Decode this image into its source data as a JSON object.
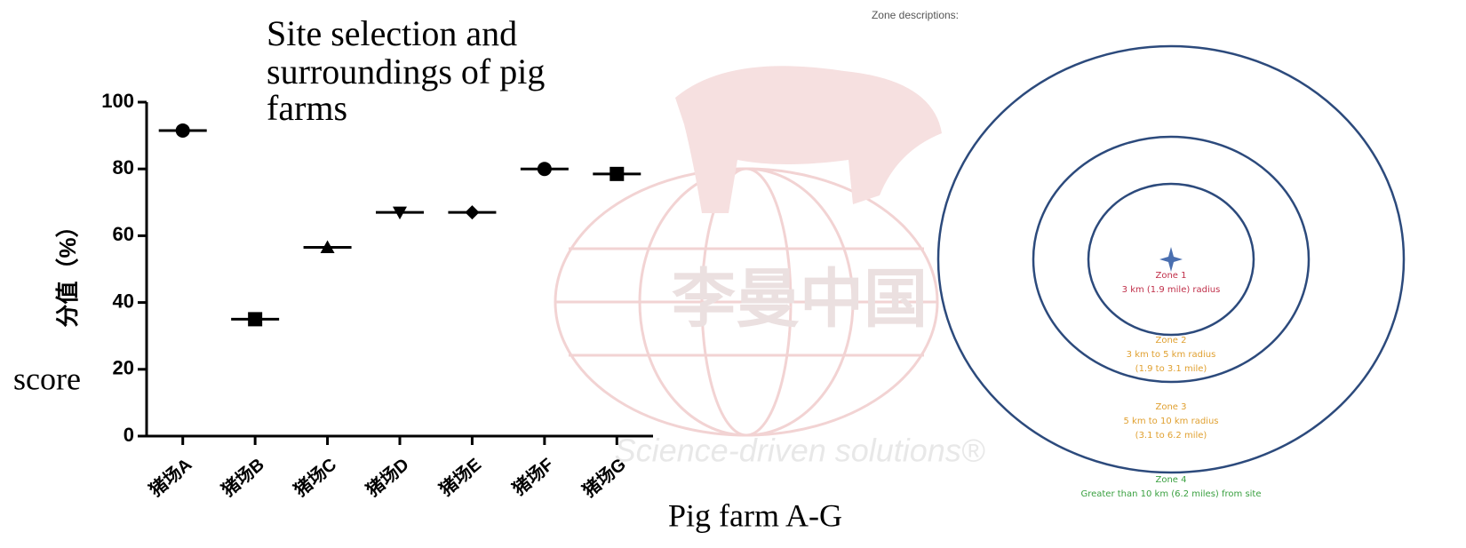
{
  "chart_data": {
    "type": "dot",
    "title": [
      "Site selection and",
      "surroundings of pig",
      "farms"
    ],
    "y_label": "分值（%）",
    "annotations": [
      "score",
      "Pig farm A-G"
    ],
    "categories": [
      "猪场A",
      "猪场B",
      "猪场C",
      "猪场D",
      "猪场E",
      "猪场F",
      "猪场G"
    ],
    "values": [
      91.5,
      35,
      56.5,
      67,
      67,
      80,
      78.5
    ],
    "markers": [
      "circle",
      "square",
      "triangle",
      "triangle-down",
      "diamond",
      "circle",
      "square"
    ],
    "color": "#000000",
    "ylim": [
      0,
      100
    ],
    "yticks": [
      0,
      20,
      40,
      60,
      80,
      100
    ]
  },
  "watermark": {
    "text": "李曼中国",
    "slogan": "Science-driven solutions®"
  },
  "diagram": {
    "title": "Zone descriptions:",
    "zones": [
      {
        "name": "Zone 1",
        "lines": [
          "3 km (1.9 mile) radius"
        ],
        "color": "#c0304a"
      },
      {
        "name": "Zone 2",
        "lines": [
          "3 km to 5 km radius",
          "(1.9 to 3.1 mile)"
        ],
        "color": "#e0a030"
      },
      {
        "name": "Zone 3",
        "lines": [
          "5 km to 10 km radius",
          "(3.1 to 6.2 mile)"
        ],
        "color": "#e0a030"
      },
      {
        "name": "Zone 4",
        "lines": [
          "Greater than 10 km (6.2 miles) from site"
        ],
        "color": "#3aa040"
      }
    ]
  }
}
